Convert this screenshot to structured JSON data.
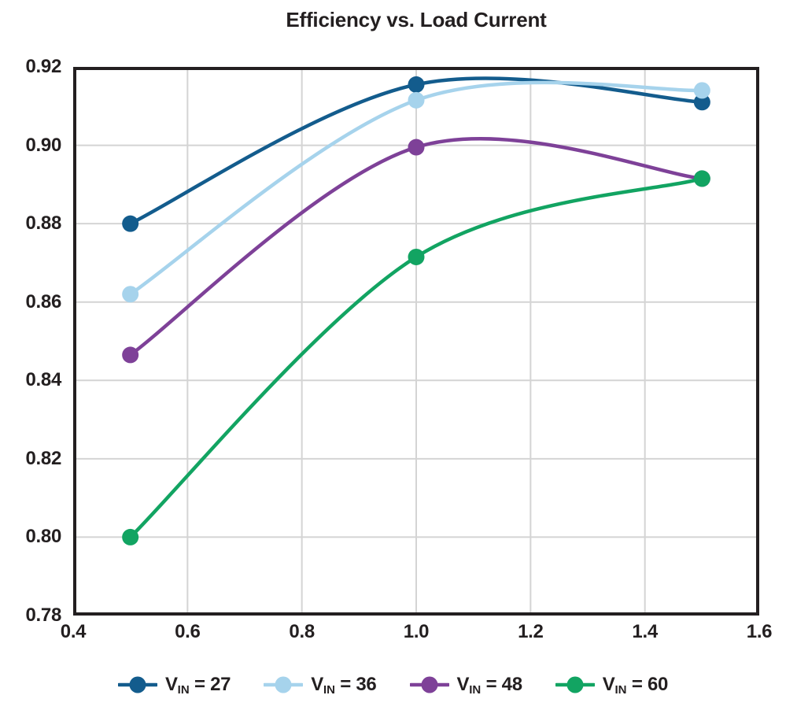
{
  "colors": {
    "text": "#231f20",
    "axis_frame": "#231f20",
    "gridline": "#d4d4d4",
    "background": "#ffffff"
  },
  "chart_data": {
    "type": "line",
    "title": "Efficiency vs. Load Current",
    "xlabel": "",
    "ylabel": "",
    "xlim": [
      0.4,
      1.6
    ],
    "ylim": [
      0.78,
      0.92
    ],
    "grid": true,
    "legend_position": "bottom",
    "x_ticks": [
      {
        "value": 0.4,
        "label": "0.4"
      },
      {
        "value": 0.6,
        "label": "0.6"
      },
      {
        "value": 0.8,
        "label": "0.8"
      },
      {
        "value": 1.0,
        "label": "1.0"
      },
      {
        "value": 1.2,
        "label": "1.2"
      },
      {
        "value": 1.4,
        "label": "1.4"
      },
      {
        "value": 1.6,
        "label": "1.6"
      }
    ],
    "y_ticks": [
      {
        "value": 0.78,
        "label": "0.78"
      },
      {
        "value": 0.8,
        "label": "0.80"
      },
      {
        "value": 0.82,
        "label": "0.82"
      },
      {
        "value": 0.84,
        "label": "0.84"
      },
      {
        "value": 0.86,
        "label": "0.86"
      },
      {
        "value": 0.88,
        "label": "0.88"
      },
      {
        "value": 0.9,
        "label": "0.90"
      },
      {
        "value": 0.92,
        "label": "0.92"
      }
    ],
    "x": [
      0.5,
      1.0,
      1.5
    ],
    "series": [
      {
        "name": "VIN = 27",
        "label": {
          "prefix": "V",
          "subscript": "IN",
          "suffix": " = 27"
        },
        "color": "#135c8d",
        "values": [
          0.88,
          0.9155,
          0.911
        ]
      },
      {
        "name": "VIN = 36",
        "label": {
          "prefix": "V",
          "subscript": "IN",
          "suffix": " = 36"
        },
        "color": "#a6d3ec",
        "values": [
          0.862,
          0.9115,
          0.914
        ]
      },
      {
        "name": "VIN = 48",
        "label": {
          "prefix": "V",
          "subscript": "IN",
          "suffix": " = 48"
        },
        "color": "#7e4198",
        "values": [
          0.8465,
          0.8995,
          0.8915
        ]
      },
      {
        "name": "VIN = 60",
        "label": {
          "prefix": "V",
          "subscript": "IN",
          "suffix": " = 60"
        },
        "color": "#12a462",
        "values": [
          0.8,
          0.8715,
          0.8915
        ]
      }
    ]
  }
}
